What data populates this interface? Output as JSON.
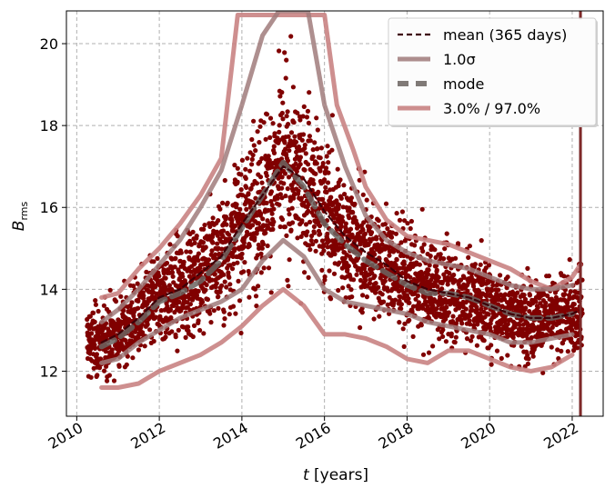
{
  "chart_data": {
    "type": "scatter",
    "title": "",
    "xlabel": "t [years]",
    "ylabel_main": "B",
    "ylabel_sub": "rms",
    "xlim": [
      2009.75,
      2022.75
    ],
    "ylim": [
      10.9,
      20.8
    ],
    "grid": true,
    "legend_position": "top-right",
    "x_ticks": [
      2010,
      2012,
      2014,
      2016,
      2018,
      2020,
      2022
    ],
    "y_ticks": [
      12,
      14,
      16,
      18,
      20
    ],
    "vertical_line_x": 2022.2,
    "scatter": {
      "color": "#800000",
      "x_start": 2010.25,
      "x_end": 2022.25,
      "approx_points": 3200
    },
    "series": [
      {
        "name": "mean (365 days)",
        "style": "dashed",
        "color": "#3d0008",
        "x": [
          2010.6,
          2011.0,
          2011.5,
          2012.0,
          2012.5,
          2013.0,
          2013.5,
          2014.0,
          2014.5,
          2015.0,
          2015.5,
          2016.0,
          2016.5,
          2017.0,
          2017.5,
          2018.0,
          2018.5,
          2019.0,
          2019.5,
          2020.0,
          2020.5,
          2021.0,
          2021.5,
          2022.0,
          2022.2
        ],
        "y": [
          12.7,
          12.9,
          13.3,
          13.8,
          14.0,
          14.4,
          14.8,
          15.6,
          16.3,
          17.0,
          16.7,
          15.9,
          15.3,
          14.9,
          14.6,
          14.2,
          14.0,
          13.9,
          13.8,
          13.6,
          13.4,
          13.3,
          13.3,
          13.4,
          13.5
        ]
      },
      {
        "name": "1.0σ",
        "style": "solid",
        "color": "#a07b7b",
        "upper": {
          "x": [
            2010.6,
            2011.0,
            2011.5,
            2012.0,
            2012.5,
            2013.0,
            2013.5,
            2014.0,
            2014.5,
            2014.9,
            2015.6,
            2016.0,
            2016.5,
            2017.0,
            2017.5,
            2018.0,
            2018.5,
            2019.0,
            2019.5,
            2020.0,
            2020.5,
            2021.0,
            2021.5,
            2022.0
          ],
          "y": [
            13.2,
            13.5,
            14.0,
            14.6,
            15.2,
            16.0,
            16.9,
            18.5,
            20.2,
            20.8,
            20.8,
            18.5,
            17.0,
            15.8,
            15.2,
            14.9,
            14.7,
            14.6,
            14.5,
            14.3,
            14.1,
            14.0,
            14.0,
            14.1
          ]
        },
        "lower": {
          "x": [
            2010.6,
            2011.0,
            2011.5,
            2012.0,
            2012.5,
            2013.0,
            2013.5,
            2014.0,
            2014.5,
            2015.0,
            2015.5,
            2016.0,
            2016.5,
            2017.0,
            2017.5,
            2018.0,
            2018.5,
            2019.0,
            2019.5,
            2020.0,
            2020.5,
            2021.0,
            2021.5,
            2022.0
          ],
          "y": [
            12.2,
            12.3,
            12.7,
            13.0,
            13.3,
            13.5,
            13.7,
            14.0,
            14.7,
            15.2,
            14.8,
            14.0,
            13.7,
            13.6,
            13.5,
            13.4,
            13.2,
            13.1,
            13.0,
            12.9,
            12.7,
            12.7,
            12.8,
            12.9
          ]
        }
      },
      {
        "name": "mode",
        "style": "dashed",
        "color": "#6b6460",
        "x": [
          2010.6,
          2011.0,
          2011.5,
          2012.0,
          2012.5,
          2013.0,
          2013.5,
          2014.0,
          2014.5,
          2015.0,
          2015.5,
          2016.0,
          2016.5,
          2017.0,
          2017.5,
          2018.0,
          2018.5,
          2019.0,
          2019.5,
          2020.0,
          2020.5,
          2021.0,
          2021.5,
          2022.0
        ],
        "y": [
          12.6,
          12.8,
          13.2,
          13.7,
          13.9,
          14.2,
          14.7,
          15.5,
          16.3,
          17.1,
          16.5,
          15.6,
          15.1,
          14.7,
          14.4,
          14.1,
          13.9,
          13.9,
          13.8,
          13.6,
          13.4,
          13.3,
          13.3,
          13.4
        ]
      },
      {
        "name": "3.0% / 97.0%",
        "style": "solid",
        "color": "#c98383",
        "upper": {
          "x": [
            2010.6,
            2011.0,
            2011.5,
            2012.0,
            2012.5,
            2013.0,
            2013.5,
            2013.9,
            2014.6,
            2016.0,
            2016.3,
            2016.7,
            2017.0,
            2017.5,
            2018.0,
            2018.5,
            2019.0,
            2019.5,
            2020.0,
            2020.5,
            2021.0,
            2021.5,
            2022.0,
            2022.2
          ],
          "y": [
            13.8,
            13.9,
            14.5,
            15.0,
            15.6,
            16.3,
            17.2,
            20.7,
            20.7,
            20.7,
            18.5,
            17.4,
            16.5,
            15.7,
            15.3,
            15.2,
            15.1,
            14.9,
            14.7,
            14.5,
            14.2,
            14.0,
            14.3,
            14.6
          ]
        },
        "lower": {
          "x": [
            2010.6,
            2011.0,
            2011.5,
            2012.0,
            2012.5,
            2013.0,
            2013.5,
            2014.0,
            2014.5,
            2015.0,
            2015.5,
            2016.0,
            2016.5,
            2017.0,
            2017.5,
            2018.0,
            2018.5,
            2019.0,
            2019.5,
            2020.0,
            2020.5,
            2021.0,
            2021.5,
            2022.0
          ],
          "y": [
            11.6,
            11.6,
            11.7,
            12.0,
            12.2,
            12.4,
            12.7,
            13.1,
            13.6,
            14.0,
            13.6,
            12.9,
            12.9,
            12.8,
            12.6,
            12.3,
            12.2,
            12.5,
            12.5,
            12.3,
            12.1,
            12.0,
            12.1,
            12.4
          ]
        }
      }
    ]
  }
}
